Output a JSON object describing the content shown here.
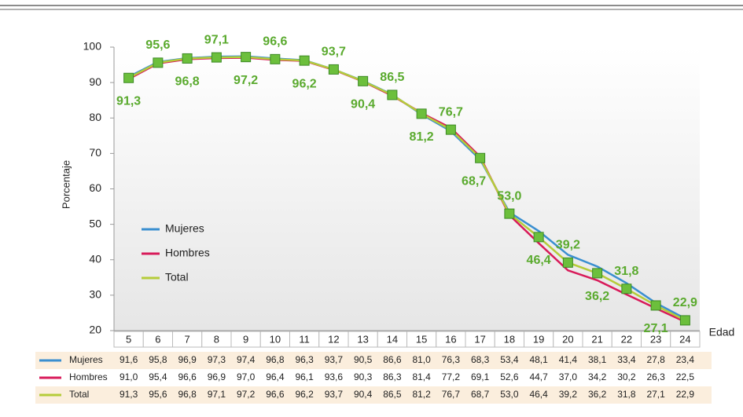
{
  "chart_data": {
    "type": "line",
    "y_label": "Porcentaje",
    "x_label": "Edad",
    "categories": [
      "5",
      "6",
      "7",
      "8",
      "9",
      "10",
      "11",
      "12",
      "13",
      "14",
      "15",
      "16",
      "17",
      "18",
      "19",
      "20",
      "21",
      "22",
      "23",
      "24"
    ],
    "ylim": [
      20,
      100
    ],
    "yticks": [
      20,
      30,
      40,
      50,
      60,
      70,
      80,
      90,
      100
    ],
    "legend": "inside-left",
    "marker_color": "#6cbf3c",
    "series": [
      {
        "name": "Mujeres",
        "color": "#3a8fd0",
        "values": [
          91.6,
          95.8,
          96.9,
          97.3,
          97.4,
          96.8,
          96.3,
          93.7,
          90.5,
          86.6,
          81.0,
          76.3,
          68.3,
          53.4,
          48.1,
          41.4,
          38.1,
          33.4,
          27.8,
          23.4
        ],
        "value_labels": [
          "91,6",
          "95,8",
          "96,9",
          "97,3",
          "97,4",
          "96,8",
          "96,3",
          "93,7",
          "90,5",
          "86,6",
          "81,0",
          "76,3",
          "68,3",
          "53,4",
          "48,1",
          "41,4",
          "38,1",
          "33,4",
          "27,8",
          "23,4"
        ]
      },
      {
        "name": "Hombres",
        "color": "#d81b5a",
        "values": [
          91.0,
          95.4,
          96.6,
          96.9,
          97.0,
          96.4,
          96.1,
          93.6,
          90.3,
          86.3,
          81.4,
          77.2,
          69.1,
          52.6,
          44.7,
          37.0,
          34.2,
          30.2,
          26.3,
          22.5
        ],
        "value_labels": [
          "91,0",
          "95,4",
          "96,6",
          "96,9",
          "97,0",
          "96,4",
          "96,1",
          "93,6",
          "90,3",
          "86,3",
          "81,4",
          "77,2",
          "69,1",
          "52,6",
          "44,7",
          "37,0",
          "34,2",
          "30,2",
          "26,3",
          "22,5"
        ]
      },
      {
        "name": "Total",
        "color": "#b5cc3a",
        "values": [
          91.3,
          95.6,
          96.8,
          97.1,
          97.2,
          96.6,
          96.2,
          93.7,
          90.4,
          86.5,
          81.2,
          76.7,
          68.7,
          53.0,
          46.4,
          39.2,
          36.2,
          31.8,
          27.1,
          22.9
        ],
        "value_labels": [
          "91,3",
          "95,6",
          "96,8",
          "97,1",
          "97,2",
          "96,6",
          "96,2",
          "93,7",
          "90,4",
          "86,5",
          "81,2",
          "76,7",
          "68,7",
          "53,0",
          "46,4",
          "39,2",
          "36,2",
          "31,8",
          "27,1",
          "22,9"
        ]
      }
    ]
  }
}
